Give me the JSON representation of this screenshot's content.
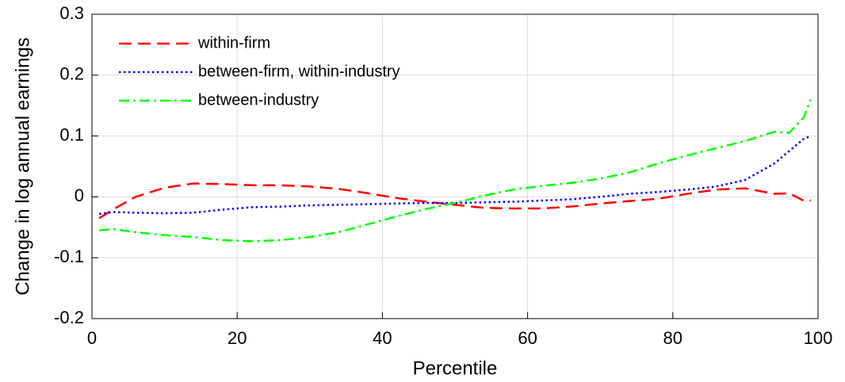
{
  "chart_data": {
    "type": "line",
    "x_label": "Percentile",
    "y_label": "Change in log annual earnings",
    "x": [
      1,
      3,
      6,
      10,
      14,
      18,
      22,
      26,
      30,
      34,
      38,
      42,
      46,
      50,
      54,
      58,
      62,
      66,
      70,
      74,
      78,
      82,
      86,
      90,
      94,
      96,
      98,
      99
    ],
    "series": [
      {
        "name": "within-firm",
        "color": "#ff0000",
        "dash": "dashed",
        "values": [
          -0.035,
          -0.02,
          0.0,
          0.015,
          0.022,
          0.021,
          0.019,
          0.019,
          0.017,
          0.013,
          0.006,
          -0.002,
          -0.008,
          -0.013,
          -0.018,
          -0.019,
          -0.019,
          -0.016,
          -0.011,
          -0.007,
          -0.003,
          0.005,
          0.012,
          0.014,
          0.005,
          0.006,
          -0.006,
          -0.006
        ]
      },
      {
        "name": "between-firm, within-industry",
        "color": "#0000ff",
        "dash": "dotted",
        "values": [
          -0.028,
          -0.025,
          -0.026,
          -0.027,
          -0.026,
          -0.021,
          -0.017,
          -0.016,
          -0.014,
          -0.013,
          -0.012,
          -0.011,
          -0.01,
          -0.01,
          -0.009,
          -0.008,
          -0.006,
          -0.004,
          0.0,
          0.005,
          0.008,
          0.012,
          0.017,
          0.028,
          0.055,
          0.075,
          0.095,
          0.1
        ]
      },
      {
        "name": "between-industry",
        "color": "#00ff00",
        "dash": "dashdot",
        "values": [
          -0.055,
          -0.053,
          -0.058,
          -0.063,
          -0.066,
          -0.071,
          -0.073,
          -0.071,
          -0.066,
          -0.058,
          -0.045,
          -0.032,
          -0.02,
          -0.01,
          0.002,
          0.012,
          0.018,
          0.023,
          0.03,
          0.04,
          0.055,
          0.068,
          0.08,
          0.092,
          0.107,
          0.105,
          0.13,
          0.16
        ]
      }
    ],
    "xlim": [
      0,
      100
    ],
    "xticks": [
      0,
      20,
      40,
      60,
      80,
      100
    ],
    "ylim": [
      -0.2,
      0.3
    ],
    "yticks": [
      -0.2,
      -0.1,
      0,
      0.1,
      0.2,
      0.3
    ],
    "grid": true,
    "legend": "upper left"
  }
}
